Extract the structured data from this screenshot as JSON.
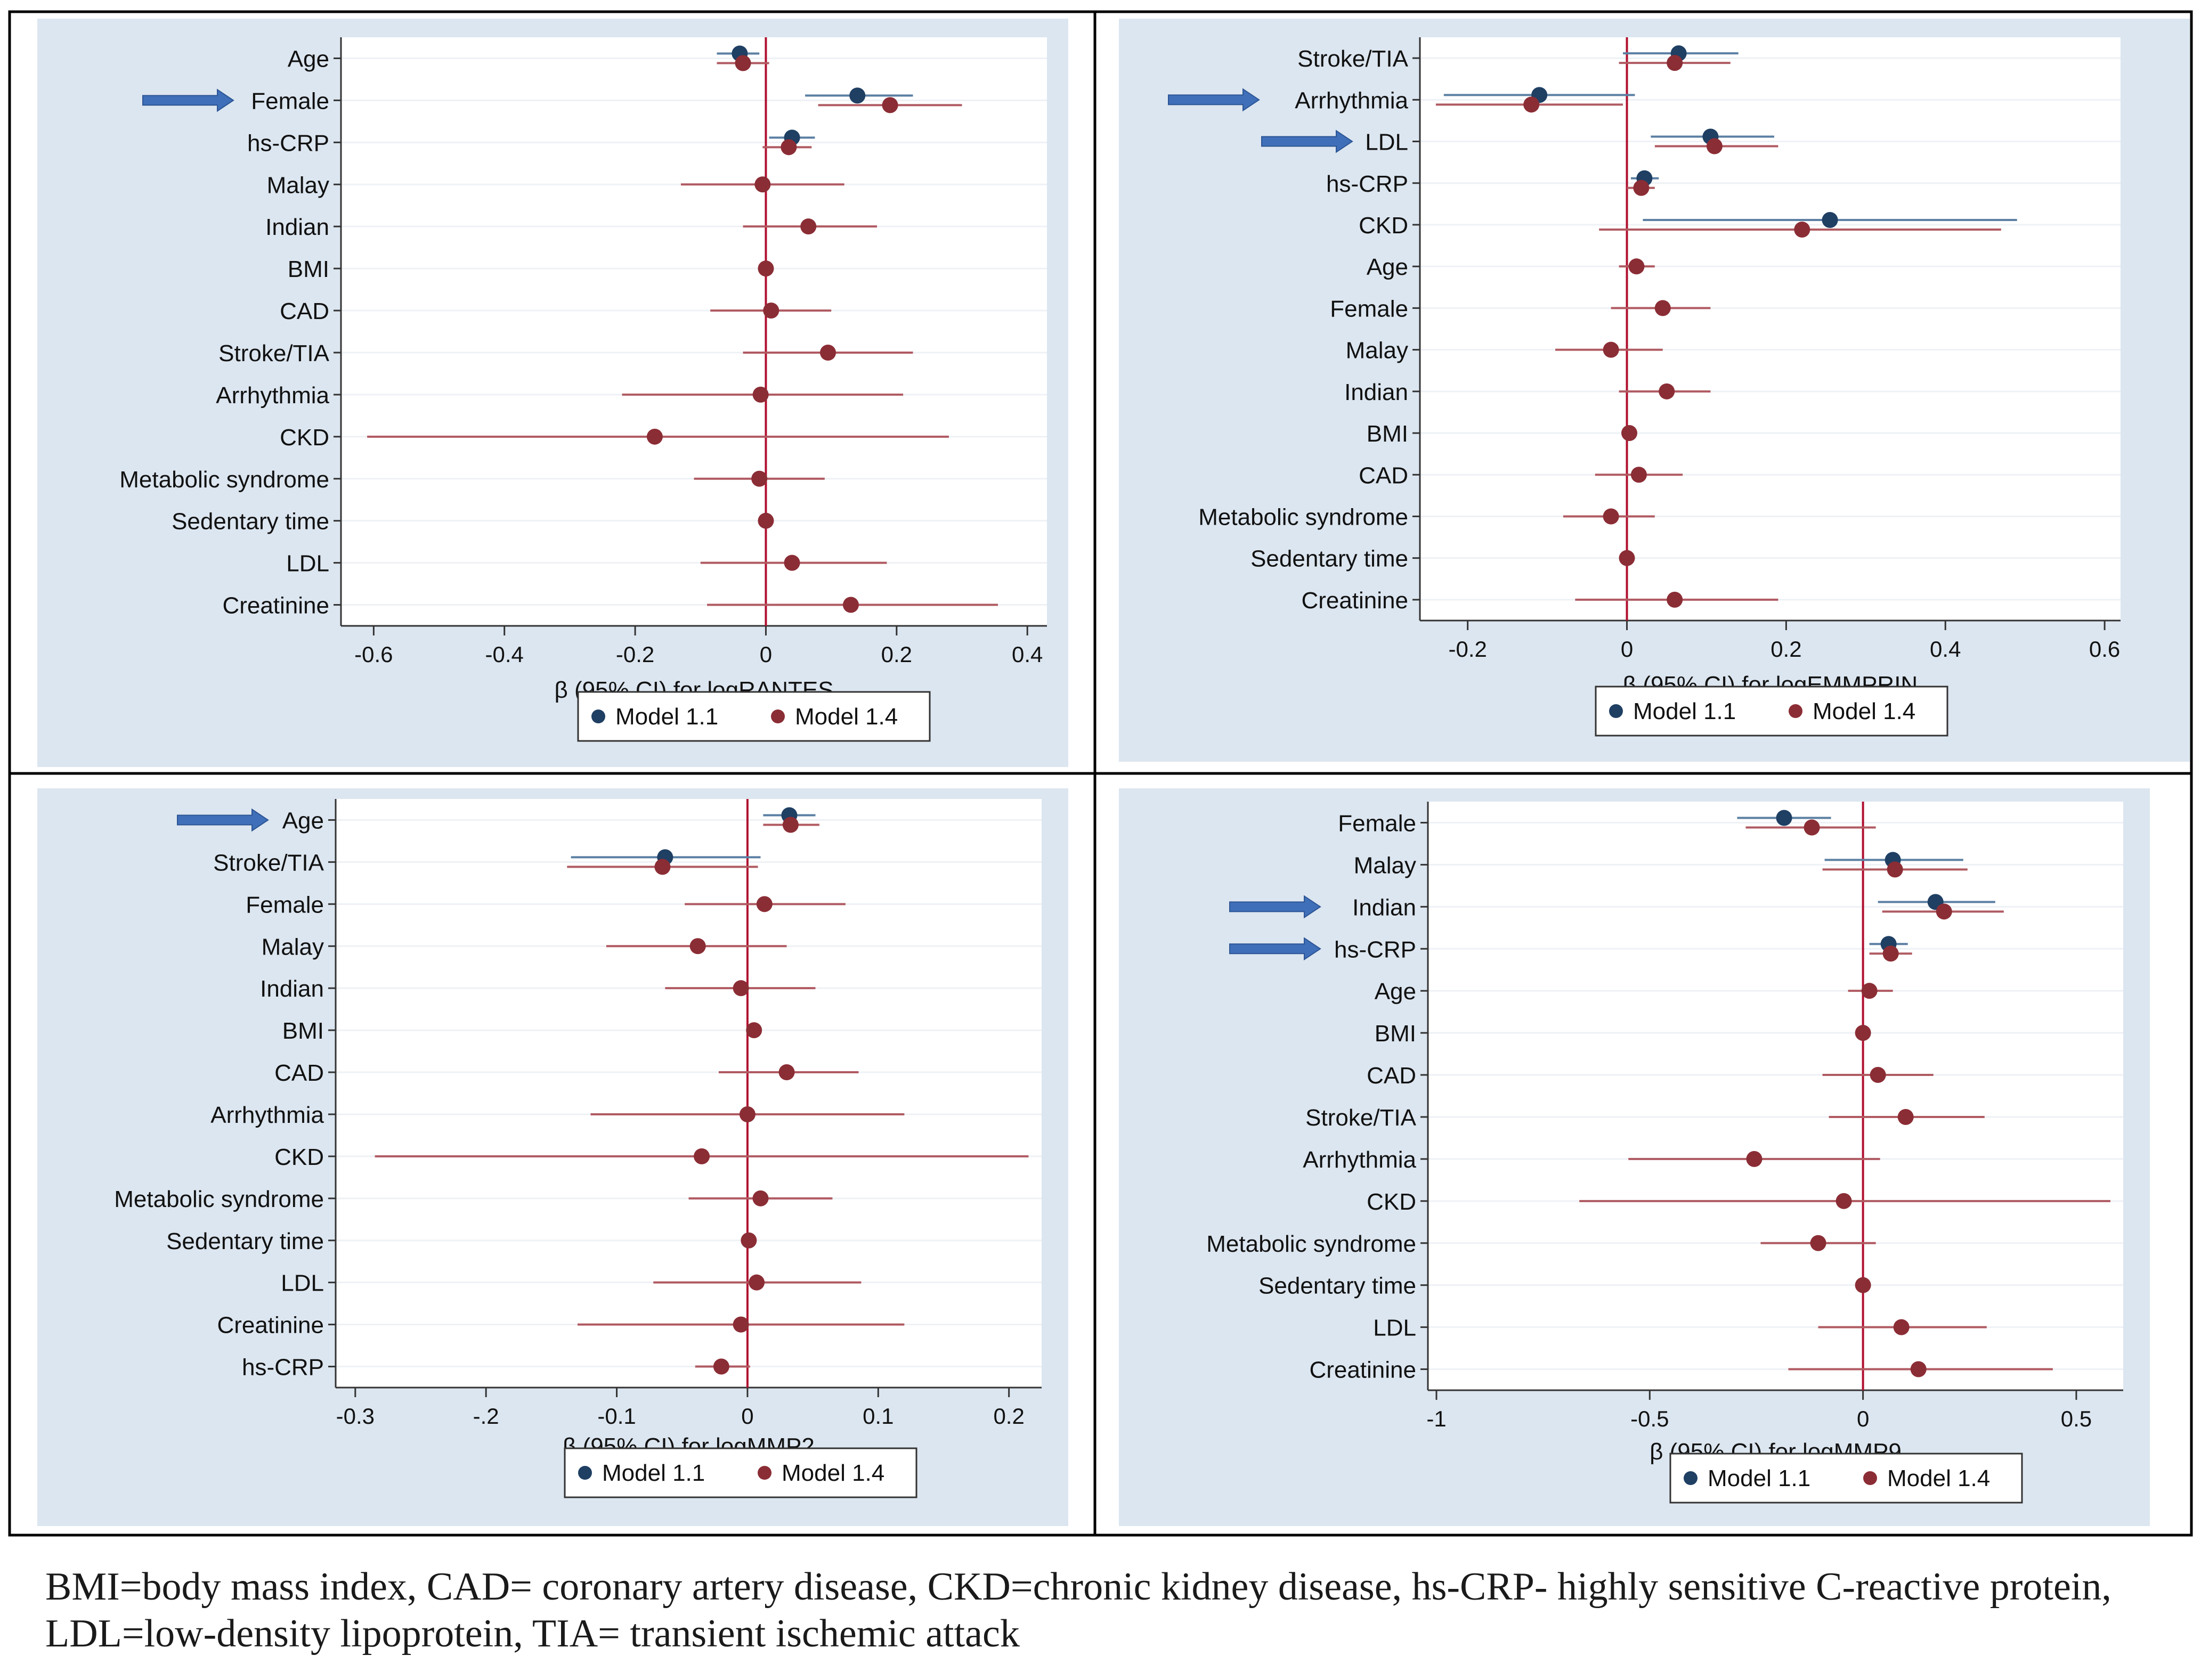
{
  "colors": {
    "model_1_1": "#1f3f63",
    "model_1_4": "#8b2d35",
    "ci_1_1": "#5b7fa3",
    "ci_1_4": "#b05a62",
    "zero_line": "#b01030",
    "panel_bg": "#dce6f0",
    "plot_bg": "#ffffff",
    "arrow": "#3f6fb8"
  },
  "legend": {
    "model_1_1": "Model 1.1",
    "model_1_4": "Model 1.4"
  },
  "caption": "BMI=body mass index, CAD= coronary artery disease, CKD=chronic kidney disease, hs-CRP- highly sensitive C-reactive protein, LDL=low-density lipoprotein, TIA= transient ischemic attack",
  "chart_data": [
    {
      "type": "forest",
      "xlabel": "β (95% CI) for logRANTES",
      "xlim": [
        -0.65,
        0.43
      ],
      "xticks": [
        -0.6,
        -0.4,
        -0.2,
        0,
        0.2,
        0.4
      ],
      "xtick_labels": [
        "-0.6",
        "-0.4",
        "-0.2",
        "0",
        "0.2",
        "0.4"
      ],
      "arrows": [
        "Female"
      ],
      "categories": [
        "Age",
        "Female",
        "hs-CRP",
        "Malay",
        "Indian",
        "BMI",
        "CAD",
        "Stroke/TIA",
        "Arrhythmia",
        "CKD",
        "Metabolic syndrome",
        "Sedentary time",
        "LDL",
        "Creatinine"
      ],
      "series": [
        {
          "name": "Model 1.1",
          "estimates": [
            {
              "label": "Age",
              "est": -0.04,
              "lo": -0.075,
              "hi": -0.01
            },
            {
              "label": "Female",
              "est": 0.14,
              "lo": 0.06,
              "hi": 0.225
            },
            {
              "label": "hs-CRP",
              "est": 0.04,
              "lo": 0.005,
              "hi": 0.075
            }
          ]
        },
        {
          "name": "Model 1.4",
          "estimates": [
            {
              "label": "Age",
              "est": -0.035,
              "lo": -0.075,
              "hi": 0.005
            },
            {
              "label": "Female",
              "est": 0.19,
              "lo": 0.08,
              "hi": 0.3
            },
            {
              "label": "hs-CRP",
              "est": 0.035,
              "lo": -0.005,
              "hi": 0.07
            },
            {
              "label": "Malay",
              "est": -0.005,
              "lo": -0.13,
              "hi": 0.12
            },
            {
              "label": "Indian",
              "est": 0.065,
              "lo": -0.035,
              "hi": 0.17
            },
            {
              "label": "BMI",
              "est": 0.0,
              "lo": -0.005,
              "hi": 0.005
            },
            {
              "label": "CAD",
              "est": 0.008,
              "lo": -0.085,
              "hi": 0.1
            },
            {
              "label": "Stroke/TIA",
              "est": 0.095,
              "lo": -0.035,
              "hi": 0.225
            },
            {
              "label": "Arrhythmia",
              "est": -0.008,
              "lo": -0.22,
              "hi": 0.21
            },
            {
              "label": "CKD",
              "est": -0.17,
              "lo": -0.61,
              "hi": 0.28
            },
            {
              "label": "Metabolic syndrome",
              "est": -0.01,
              "lo": -0.11,
              "hi": 0.09
            },
            {
              "label": "Sedentary time",
              "est": 0.0,
              "lo": -0.005,
              "hi": 0.005
            },
            {
              "label": "LDL",
              "est": 0.04,
              "lo": -0.1,
              "hi": 0.185
            },
            {
              "label": "Creatinine",
              "est": 0.13,
              "lo": -0.09,
              "hi": 0.355
            }
          ]
        }
      ]
    },
    {
      "type": "forest",
      "xlabel": "β (95% CI) for logEMMPRIN",
      "xlim": [
        -0.26,
        0.62
      ],
      "xticks": [
        -0.2,
        0,
        0.2,
        0.4,
        0.6
      ],
      "xtick_labels": [
        "-0.2",
        "0",
        "0.2",
        "0.4",
        "0.6"
      ],
      "arrows": [
        "Arrhythmia",
        "LDL"
      ],
      "categories": [
        "Stroke/TIA",
        "Arrhythmia",
        "LDL",
        "hs-CRP",
        "CKD",
        "Age",
        "Female",
        "Malay",
        "Indian",
        "BMI",
        "CAD",
        "Metabolic syndrome",
        "Sedentary time",
        "Creatinine"
      ],
      "series": [
        {
          "name": "Model 1.1",
          "estimates": [
            {
              "label": "Stroke/TIA",
              "est": 0.065,
              "lo": -0.005,
              "hi": 0.14
            },
            {
              "label": "Arrhythmia",
              "est": -0.11,
              "lo": -0.23,
              "hi": 0.01
            },
            {
              "label": "LDL",
              "est": 0.105,
              "lo": 0.03,
              "hi": 0.185
            },
            {
              "label": "hs-CRP",
              "est": 0.022,
              "lo": 0.005,
              "hi": 0.04
            },
            {
              "label": "CKD",
              "est": 0.255,
              "lo": 0.02,
              "hi": 0.49
            }
          ]
        },
        {
          "name": "Model 1.4",
          "estimates": [
            {
              "label": "Stroke/TIA",
              "est": 0.06,
              "lo": -0.01,
              "hi": 0.13
            },
            {
              "label": "Arrhythmia",
              "est": -0.12,
              "lo": -0.24,
              "hi": -0.005
            },
            {
              "label": "LDL",
              "est": 0.11,
              "lo": 0.035,
              "hi": 0.19
            },
            {
              "label": "hs-CRP",
              "est": 0.018,
              "lo": 0.0,
              "hi": 0.035
            },
            {
              "label": "CKD",
              "est": 0.22,
              "lo": -0.035,
              "hi": 0.47
            },
            {
              "label": "Age",
              "est": 0.012,
              "lo": -0.01,
              "hi": 0.035
            },
            {
              "label": "Female",
              "est": 0.045,
              "lo": -0.02,
              "hi": 0.105
            },
            {
              "label": "Malay",
              "est": -0.02,
              "lo": -0.09,
              "hi": 0.045
            },
            {
              "label": "Indian",
              "est": 0.05,
              "lo": -0.01,
              "hi": 0.105
            },
            {
              "label": "BMI",
              "est": 0.003,
              "lo": -0.002,
              "hi": 0.008
            },
            {
              "label": "CAD",
              "est": 0.015,
              "lo": -0.04,
              "hi": 0.07
            },
            {
              "label": "Metabolic syndrome",
              "est": -0.02,
              "lo": -0.08,
              "hi": 0.035
            },
            {
              "label": "Sedentary time",
              "est": 0.0,
              "lo": -0.003,
              "hi": 0.003
            },
            {
              "label": "Creatinine",
              "est": 0.06,
              "lo": -0.065,
              "hi": 0.19
            }
          ]
        }
      ]
    },
    {
      "type": "forest",
      "xlabel": "β (95% CI) for logMMP2",
      "xlim": [
        -0.315,
        0.225
      ],
      "xticks": [
        -0.3,
        -0.2,
        -0.1,
        0,
        0.1,
        0.2
      ],
      "xtick_labels": [
        "-0.3",
        "-.2",
        "-0.1",
        "0",
        "0.1",
        "0.2"
      ],
      "arrows": [
        "Age"
      ],
      "categories": [
        "Age",
        "Stroke/TIA",
        "Female",
        "Malay",
        "Indian",
        "BMI",
        "CAD",
        "Arrhythmia",
        "CKD",
        "Metabolic syndrome",
        "Sedentary time",
        "LDL",
        "Creatinine",
        "hs-CRP"
      ],
      "series": [
        {
          "name": "Model 1.1",
          "estimates": [
            {
              "label": "Age",
              "est": 0.032,
              "lo": 0.012,
              "hi": 0.052
            },
            {
              "label": "Stroke/TIA",
              "est": -0.063,
              "lo": -0.135,
              "hi": 0.01
            }
          ]
        },
        {
          "name": "Model 1.4",
          "estimates": [
            {
              "label": "Age",
              "est": 0.033,
              "lo": 0.012,
              "hi": 0.055
            },
            {
              "label": "Stroke/TIA",
              "est": -0.065,
              "lo": -0.138,
              "hi": 0.008
            },
            {
              "label": "Female",
              "est": 0.013,
              "lo": -0.048,
              "hi": 0.075
            },
            {
              "label": "Malay",
              "est": -0.038,
              "lo": -0.108,
              "hi": 0.03
            },
            {
              "label": "Indian",
              "est": -0.005,
              "lo": -0.063,
              "hi": 0.052
            },
            {
              "label": "BMI",
              "est": 0.005,
              "lo": 0.0,
              "hi": 0.01
            },
            {
              "label": "CAD",
              "est": 0.03,
              "lo": -0.022,
              "hi": 0.085
            },
            {
              "label": "Arrhythmia",
              "est": 0.0,
              "lo": -0.12,
              "hi": 0.12
            },
            {
              "label": "CKD",
              "est": -0.035,
              "lo": -0.285,
              "hi": 0.215
            },
            {
              "label": "Metabolic syndrome",
              "est": 0.01,
              "lo": -0.045,
              "hi": 0.065
            },
            {
              "label": "Sedentary time",
              "est": 0.001,
              "lo": -0.003,
              "hi": 0.005
            },
            {
              "label": "LDL",
              "est": 0.007,
              "lo": -0.072,
              "hi": 0.087
            },
            {
              "label": "Creatinine",
              "est": -0.005,
              "lo": -0.13,
              "hi": 0.12
            },
            {
              "label": "hs-CRP",
              "est": -0.02,
              "lo": -0.04,
              "hi": 0.002
            }
          ]
        }
      ]
    },
    {
      "type": "forest",
      "xlabel": "β (95% CI) for logMMP9",
      "xlim": [
        -1.02,
        0.61
      ],
      "xticks": [
        -1,
        -0.5,
        0,
        0.5
      ],
      "xtick_labels": [
        "-1",
        "-0.5",
        "0",
        "0.5"
      ],
      "arrows": [
        "Indian",
        "hs-CRP"
      ],
      "categories": [
        "Female",
        "Malay",
        "Indian",
        "hs-CRP",
        "Age",
        "BMI",
        "CAD",
        "Stroke/TIA",
        "Arrhythmia",
        "CKD",
        "Metabolic syndrome",
        "Sedentary time",
        "LDL",
        "Creatinine"
      ],
      "series": [
        {
          "name": "Model 1.1",
          "estimates": [
            {
              "label": "Female",
              "est": -0.185,
              "lo": -0.295,
              "hi": -0.075
            },
            {
              "label": "Malay",
              "est": 0.07,
              "lo": -0.09,
              "hi": 0.235
            },
            {
              "label": "Indian",
              "est": 0.17,
              "lo": 0.035,
              "hi": 0.31
            },
            {
              "label": "hs-CRP",
              "est": 0.06,
              "lo": 0.015,
              "hi": 0.105
            }
          ]
        },
        {
          "name": "Model 1.4",
          "estimates": [
            {
              "label": "Female",
              "est": -0.12,
              "lo": -0.275,
              "hi": 0.03
            },
            {
              "label": "Malay",
              "est": 0.075,
              "lo": -0.095,
              "hi": 0.245
            },
            {
              "label": "Indian",
              "est": 0.19,
              "lo": 0.045,
              "hi": 0.33
            },
            {
              "label": "hs-CRP",
              "est": 0.065,
              "lo": 0.015,
              "hi": 0.115
            },
            {
              "label": "Age",
              "est": 0.015,
              "lo": -0.035,
              "hi": 0.07
            },
            {
              "label": "BMI",
              "est": 0.0,
              "lo": -0.005,
              "hi": 0.005
            },
            {
              "label": "CAD",
              "est": 0.035,
              "lo": -0.095,
              "hi": 0.165
            },
            {
              "label": "Stroke/TIA",
              "est": 0.1,
              "lo": -0.08,
              "hi": 0.285
            },
            {
              "label": "Arrhythmia",
              "est": -0.255,
              "lo": -0.55,
              "hi": 0.04
            },
            {
              "label": "CKD",
              "est": -0.045,
              "lo": -0.665,
              "hi": 0.58
            },
            {
              "label": "Metabolic syndrome",
              "est": -0.105,
              "lo": -0.24,
              "hi": 0.03
            },
            {
              "label": "Sedentary time",
              "est": 0.0,
              "lo": -0.005,
              "hi": 0.005
            },
            {
              "label": "LDL",
              "est": 0.09,
              "lo": -0.105,
              "hi": 0.29
            },
            {
              "label": "Creatinine",
              "est": 0.13,
              "lo": -0.175,
              "hi": 0.445
            }
          ]
        }
      ]
    }
  ]
}
